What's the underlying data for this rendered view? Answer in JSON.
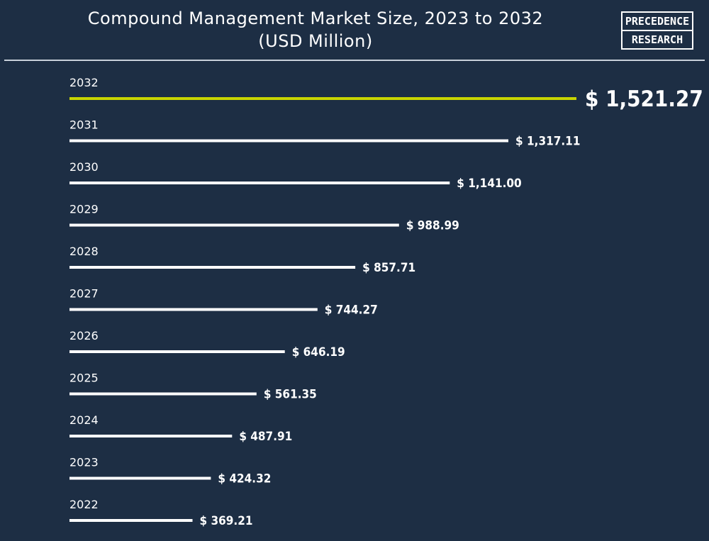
{
  "header": {
    "title_line1": "Compound Management Market Size, 2023 to 2032",
    "title_line2": "(USD Million)",
    "logo_line1": "PRECEDENCE",
    "logo_line2": "RESEARCH"
  },
  "colors": {
    "background": "#1d2e44",
    "bar": "#ffffff",
    "highlight_bar": "#c8d400"
  },
  "chart_data": {
    "type": "bar",
    "orientation": "horizontal",
    "title": "Compound Management Market Size, 2023 to 2032 (USD Million)",
    "categories": [
      "2032",
      "2031",
      "2030",
      "2029",
      "2028",
      "2027",
      "2026",
      "2025",
      "2024",
      "2023",
      "2022"
    ],
    "values": [
      1521.27,
      1317.11,
      1141.0,
      988.99,
      857.71,
      744.27,
      646.19,
      561.35,
      487.91,
      424.32,
      369.21
    ],
    "value_labels": [
      "$ 1,521.27",
      "$ 1,317.11",
      "$ 1,141.00",
      "$ 988.99",
      "$ 857.71",
      "$ 744.27",
      "$ 646.19",
      "$ 561.35",
      "$ 487.91",
      "$ 424.32",
      "$ 369.21"
    ],
    "highlight_category": "2032",
    "grid": false,
    "legend": "none"
  }
}
